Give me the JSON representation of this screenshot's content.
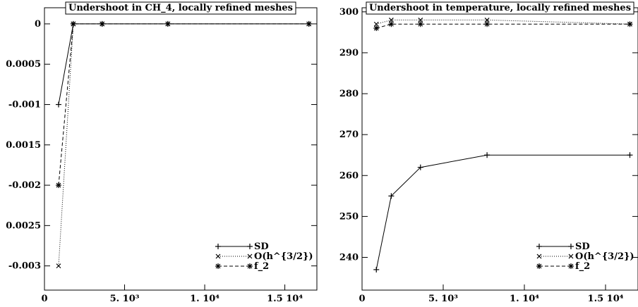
{
  "chart_data": [
    {
      "type": "line",
      "title": "Undershoot in CH_4, locally refined meshes",
      "xlabel": "",
      "ylabel": "",
      "xlim": [
        0,
        17000
      ],
      "ylim": [
        -0.0033,
        0.0002
      ],
      "grid": false,
      "legend_position": "bottom-right",
      "x_ticks": [
        {
          "v": 0,
          "label": "0"
        },
        {
          "v": 5000,
          "label": "5. 10³"
        },
        {
          "v": 10000,
          "label": "1. 10⁴"
        },
        {
          "v": 15000,
          "label": "1.5 10⁴"
        }
      ],
      "y_ticks": [
        {
          "v": 0,
          "label": "0"
        },
        {
          "v": -0.0005,
          "label": "0.0005"
        },
        {
          "v": -0.001,
          "label": "-0.001"
        },
        {
          "v": -0.0015,
          "label": "0.0015"
        },
        {
          "v": -0.002,
          "label": "-0.002"
        },
        {
          "v": -0.0025,
          "label": "0.0025"
        },
        {
          "v": -0.003,
          "label": "-0.003"
        }
      ],
      "series": [
        {
          "name": "SD",
          "marker": "plus",
          "dash": "",
          "x": [
            880,
            1800,
            3600,
            7700,
            16500
          ],
          "y": [
            -0.001,
            0,
            0,
            0,
            0
          ]
        },
        {
          "name": "O(h^{3/2})",
          "marker": "cross",
          "dash": "1,2",
          "x": [
            880,
            1800,
            3600,
            7700,
            16500
          ],
          "y": [
            -0.003,
            0,
            0,
            0,
            0
          ]
        },
        {
          "name": "f_2",
          "marker": "star",
          "dash": "5,3",
          "x": [
            880,
            1800,
            3600,
            7700,
            16500
          ],
          "y": [
            -0.002,
            0,
            0,
            0,
            0
          ]
        }
      ]
    },
    {
      "type": "line",
      "title": "Undershoot in temperature, locally refined meshes",
      "xlabel": "",
      "ylabel": "",
      "xlim": [
        0,
        17000
      ],
      "ylim": [
        232,
        301
      ],
      "grid": false,
      "legend_position": "bottom-right",
      "x_ticks": [
        {
          "v": 0,
          "label": "0"
        },
        {
          "v": 5000,
          "label": "5. 10³"
        },
        {
          "v": 10000,
          "label": "1. 10⁴"
        },
        {
          "v": 15000,
          "label": "1.5 10⁴"
        }
      ],
      "y_ticks": [
        {
          "v": 240,
          "label": "240"
        },
        {
          "v": 250,
          "label": "250"
        },
        {
          "v": 260,
          "label": "260"
        },
        {
          "v": 270,
          "label": "270"
        },
        {
          "v": 280,
          "label": "280"
        },
        {
          "v": 290,
          "label": "290"
        },
        {
          "v": 300,
          "label": "300"
        }
      ],
      "series": [
        {
          "name": "SD",
          "marker": "plus",
          "dash": "",
          "x": [
            880,
            1800,
            3600,
            7700,
            16500
          ],
          "y": [
            237,
            255,
            262,
            265,
            265
          ]
        },
        {
          "name": "O(h^{3/2})",
          "marker": "cross",
          "dash": "1,2",
          "x": [
            880,
            1800,
            3600,
            7700,
            16500
          ],
          "y": [
            297,
            298,
            298,
            298,
            297
          ]
        },
        {
          "name": "f_2",
          "marker": "star",
          "dash": "5,3",
          "x": [
            880,
            1800,
            3600,
            7700,
            16500
          ],
          "y": [
            296,
            297,
            297,
            297,
            297
          ]
        }
      ]
    }
  ]
}
